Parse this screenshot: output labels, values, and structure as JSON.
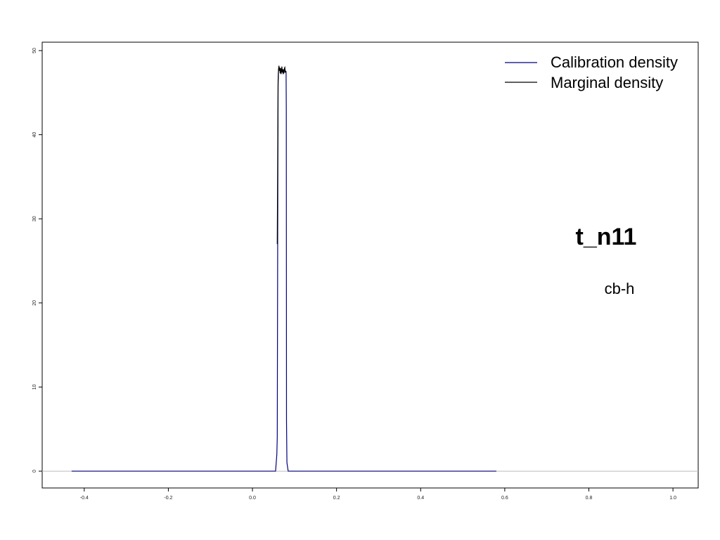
{
  "chart_data": {
    "type": "line",
    "title": "t_n11",
    "subtitle": "cb-h",
    "xlabel": "",
    "ylabel": "",
    "xlim": [
      -0.5,
      1.06
    ],
    "ylim": [
      -2,
      51
    ],
    "x_ticks": [
      -0.4,
      -0.2,
      0.0,
      0.2,
      0.4,
      0.6,
      0.8,
      1.0
    ],
    "x_tick_labels": [
      "-0.4",
      "-0.2",
      "0.0",
      "0.2",
      "0.4",
      "0.6",
      "0.8",
      "1.0"
    ],
    "y_ticks": [
      0,
      10,
      20,
      30,
      40,
      50
    ],
    "y_tick_labels": [
      "0",
      "10",
      "20",
      "30",
      "40",
      "50"
    ],
    "grid": false,
    "legend_position": "top-right",
    "legend": [
      {
        "name": "Calibration density",
        "color": "#00007f"
      },
      {
        "name": "Marginal density",
        "color": "#000000"
      }
    ],
    "series": [
      {
        "name": "Calibration density",
        "color": "#00007f",
        "x": [
          -0.43,
          0.0,
          0.055,
          0.058,
          0.059,
          0.06,
          0.061,
          0.062,
          0.064,
          0.066,
          0.068,
          0.07,
          0.072,
          0.074,
          0.076,
          0.078,
          0.08,
          0.0805,
          0.081,
          0.082,
          0.085,
          0.1,
          0.3,
          0.58
        ],
        "y": [
          0,
          0,
          0,
          2,
          4,
          27,
          46,
          47.6,
          47.8,
          47.7,
          47.6,
          47.8,
          47.5,
          47.7,
          47.6,
          47.5,
          47.4,
          43,
          6,
          1,
          0,
          0,
          0,
          0
        ]
      },
      {
        "name": "Marginal density",
        "color": "#000000",
        "x": [
          0.059,
          0.061,
          0.062,
          0.063,
          0.064,
          0.065,
          0.066,
          0.067,
          0.068,
          0.069,
          0.07,
          0.071,
          0.072,
          0.073,
          0.074,
          0.075,
          0.076,
          0.077,
          0.078,
          0.0795,
          0.08
        ],
        "y": [
          27,
          46.5,
          47.8,
          48.2,
          47.6,
          48.0,
          47.3,
          47.9,
          47.2,
          47.6,
          48.1,
          47.4,
          47.8,
          47.2,
          47.7,
          47.3,
          47.9,
          48.0,
          47.4,
          47.6,
          47.4
        ]
      }
    ],
    "baseline_y": 0,
    "baseline_color": "#bbbbbb"
  }
}
